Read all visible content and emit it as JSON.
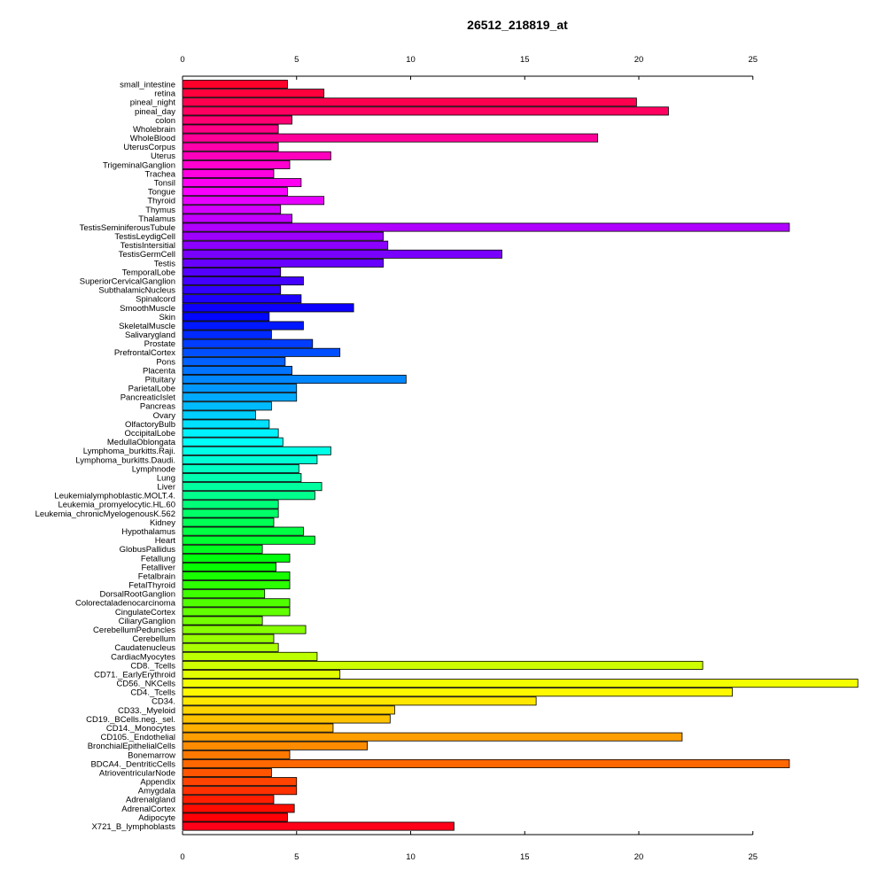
{
  "chart_data": {
    "type": "bar",
    "orientation": "horizontal",
    "title": "26512_218819_at",
    "xlim": [
      0,
      29.8
    ],
    "xticks": [
      0,
      5,
      10,
      15,
      20,
      25
    ],
    "grid": false,
    "categories": [
      "small_intestine",
      "retina",
      "pineal_night",
      "pineal_day",
      "colon",
      "Wholebrain",
      "WholeBlood",
      "UterusCorpus",
      "Uterus",
      "TrigeminalGanglion",
      "Trachea",
      "Tonsil",
      "Tongue",
      "Thyroid",
      "Thymus",
      "Thalamus",
      "TestisSeminiferousTubule",
      "TestisLeydigCell",
      "TestisIntersitial",
      "TestisGermCell",
      "Testis",
      "TemporalLobe",
      "SuperiorCervicalGanglion",
      "SubthalamicNucleus",
      "Spinalcord",
      "SmoothMuscle",
      "Skin",
      "SkeletalMuscle",
      "Salivarygland",
      "Prostate",
      "PrefrontalCortex",
      "Pons",
      "Placenta",
      "Pituitary",
      "ParietalLobe",
      "PancreaticIslet",
      "Pancreas",
      "Ovary",
      "OlfactoryBulb",
      "OccipitalLobe",
      "MedullaOblongata",
      "Lymphoma_burkitts.Raji.",
      "Lymphoma_burkitts.Daudi.",
      "Lymphnode",
      "Lung",
      "Liver",
      "Leukemialymphoblastic.MOLT.4.",
      "Leukemia_promyelocytic.HL.60",
      "Leukemia_chronicMyelogenousK.562",
      "Kidney",
      "Hypothalamus",
      "Heart",
      "GlobusPallidus",
      "Fetallung",
      "Fetalliver",
      "Fetalbrain",
      "FetalThyroid",
      "DorsalRootGanglion",
      "Colorectaladenocarcinoma",
      "CingulateCortex",
      "CiliaryGanglion",
      "CerebellumPeduncles",
      "Cerebellum",
      "Caudatenucleus",
      "CardiacMyocytes",
      "CD8._Tcells",
      "CD71._EarlyErythroid",
      "CD56._NKCells",
      "CD4._Tcells",
      "CD34.",
      "CD33._Myeloid",
      "CD19._BCells.neg._sel.",
      "CD14._Monocytes",
      "CD105._Endothelial",
      "BronchialEpithelialCells",
      "Bonemarrow",
      "BDCA4._DentriticCells",
      "AtrioventricularNode",
      "Appendix",
      "Amygdala",
      "Adrenalgland",
      "AdrenalCortex",
      "Adipocyte",
      "X721_B_lymphoblasts"
    ],
    "values": [
      4.6,
      6.2,
      19.9,
      21.3,
      4.8,
      4.2,
      18.2,
      4.2,
      6.5,
      4.7,
      4.0,
      5.2,
      4.6,
      6.2,
      4.3,
      4.8,
      26.6,
      8.8,
      9.0,
      14.0,
      8.8,
      4.3,
      5.3,
      4.3,
      5.2,
      7.5,
      3.8,
      5.3,
      3.9,
      5.7,
      6.9,
      4.5,
      4.8,
      9.8,
      5.0,
      5.0,
      3.9,
      3.2,
      3.8,
      4.2,
      4.4,
      6.5,
      5.9,
      5.1,
      5.2,
      6.1,
      5.8,
      4.2,
      4.2,
      4.0,
      5.3,
      5.8,
      3.5,
      4.7,
      4.1,
      4.7,
      4.7,
      3.6,
      4.7,
      4.7,
      3.5,
      5.4,
      4.0,
      4.2,
      5.9,
      22.8,
      6.9,
      29.6,
      24.1,
      15.5,
      9.3,
      9.1,
      6.6,
      21.9,
      8.1,
      4.7,
      26.6,
      3.9,
      5.0,
      5.0,
      4.0,
      4.9,
      4.6,
      11.9
    ]
  }
}
